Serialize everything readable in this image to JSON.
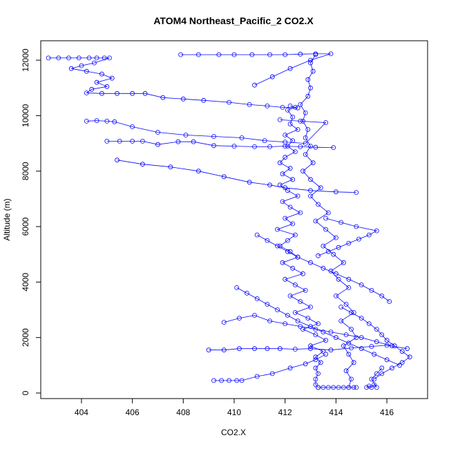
{
  "chart_data": {
    "type": "scatter",
    "title": "ATOM4 Northeast_Pacific_2 CO2.X",
    "xlabel": "CO2.X",
    "ylabel": "Altitude (m)",
    "xlim": [
      402.4,
      417.6
    ],
    "ylim": [
      -200,
      12700
    ],
    "x_ticks": [
      404,
      406,
      408,
      410,
      412,
      414,
      416
    ],
    "y_ticks": [
      0,
      2000,
      4000,
      6000,
      8000,
      10000,
      12000
    ],
    "marker_color": "#0000ff",
    "line_color": "#0000ff",
    "grid": false,
    "legend": "none",
    "series": [
      {
        "values": [
          [
            412.2,
            10350
          ],
          [
            412.4,
            10300
          ],
          [
            412.1,
            10200
          ],
          [
            412.3,
            9950
          ],
          [
            412.2,
            9700
          ],
          [
            412.5,
            9500
          ],
          [
            412.0,
            9300
          ],
          [
            412.3,
            9100
          ],
          [
            412.1,
            8900
          ],
          [
            412.4,
            8700
          ],
          [
            412.0,
            8500
          ],
          [
            411.8,
            8300
          ],
          [
            412.2,
            8100
          ],
          [
            411.9,
            7900
          ],
          [
            412.3,
            7700
          ],
          [
            411.8,
            7500
          ],
          [
            412.1,
            7300
          ],
          [
            412.5,
            7100
          ],
          [
            411.9,
            6900
          ],
          [
            412.2,
            6700
          ],
          [
            412.6,
            6500
          ],
          [
            412.0,
            6300
          ],
          [
            412.3,
            6100
          ],
          [
            411.7,
            5900
          ],
          [
            412.4,
            5700
          ],
          [
            412.1,
            5500
          ],
          [
            411.8,
            5300
          ],
          [
            412.2,
            5100
          ],
          [
            412.5,
            4900
          ],
          [
            411.9,
            4700
          ],
          [
            412.3,
            4500
          ],
          [
            412.7,
            4300
          ],
          [
            412.0,
            4100
          ],
          [
            412.4,
            3900
          ],
          [
            412.8,
            3700
          ],
          [
            412.2,
            3500
          ],
          [
            412.6,
            3300
          ],
          [
            413.0,
            3100
          ],
          [
            412.4,
            2900
          ],
          [
            412.9,
            2700
          ],
          [
            413.3,
            2500
          ],
          [
            412.7,
            2300
          ],
          [
            413.2,
            2100
          ],
          [
            413.6,
            1900
          ],
          [
            413.0,
            1700
          ],
          [
            413.5,
            1500
          ],
          [
            413.2,
            1300
          ],
          [
            413.4,
            1100
          ],
          [
            413.2,
            900
          ],
          [
            413.3,
            700
          ],
          [
            413.2,
            500
          ],
          [
            413.2,
            300
          ],
          [
            413.3,
            200
          ]
        ]
      },
      {
        "values": [
          [
            414.5,
            200
          ],
          [
            414.6,
            500
          ],
          [
            414.4,
            800
          ],
          [
            414.7,
            1100
          ],
          [
            414.5,
            1400
          ],
          [
            414.3,
            1700
          ],
          [
            414.8,
            2000
          ],
          [
            414.6,
            2300
          ],
          [
            414.2,
            2600
          ],
          [
            414.7,
            2900
          ],
          [
            414.4,
            3200
          ],
          [
            414.0,
            3500
          ],
          [
            414.5,
            3800
          ],
          [
            414.1,
            4100
          ],
          [
            413.8,
            4400
          ],
          [
            414.3,
            4700
          ],
          [
            413.9,
            5000
          ],
          [
            413.5,
            5300
          ],
          [
            414.0,
            5600
          ],
          [
            413.6,
            5900
          ],
          [
            413.2,
            6200
          ],
          [
            413.7,
            6500
          ],
          [
            413.3,
            6800
          ],
          [
            413.0,
            7100
          ],
          [
            413.4,
            7400
          ],
          [
            413.0,
            7700
          ],
          [
            412.7,
            8000
          ],
          [
            413.1,
            8300
          ],
          [
            412.8,
            8600
          ],
          [
            413.0,
            8900
          ],
          [
            412.8,
            9200
          ],
          [
            412.9,
            9500
          ],
          [
            412.7,
            9800
          ],
          [
            412.8,
            10100
          ],
          [
            412.6,
            10400
          ],
          [
            412.9,
            10700
          ],
          [
            413.0,
            11000
          ],
          [
            412.9,
            11300
          ],
          [
            413.1,
            11600
          ],
          [
            413.0,
            11900
          ],
          [
            413.2,
            12200
          ]
        ]
      },
      {
        "values": [
          [
            402.7,
            12080
          ],
          [
            403.1,
            12080
          ],
          [
            403.5,
            12080
          ],
          [
            403.9,
            12080
          ],
          [
            404.3,
            12080
          ],
          [
            404.6,
            12080
          ],
          [
            404.9,
            12080
          ],
          [
            405.1,
            12080
          ],
          [
            404.5,
            11900
          ],
          [
            404.0,
            11800
          ],
          [
            403.6,
            11700
          ],
          [
            404.2,
            11600
          ],
          [
            404.8,
            11500
          ],
          [
            405.2,
            11350
          ],
          [
            404.6,
            11200
          ],
          [
            405.0,
            11050
          ],
          [
            404.4,
            10950
          ],
          [
            404.2,
            10820
          ],
          [
            404.8,
            10800
          ],
          [
            405.4,
            10800
          ],
          [
            406.0,
            10800
          ],
          [
            406.5,
            10800
          ],
          [
            407.2,
            10650
          ],
          [
            408.0,
            10600
          ],
          [
            408.8,
            10550
          ],
          [
            409.8,
            10480
          ],
          [
            410.6,
            10400
          ],
          [
            411.3,
            10350
          ],
          [
            411.9,
            10300
          ],
          [
            412.5,
            10280
          ]
        ]
      },
      {
        "values": [
          [
            404.2,
            9800
          ],
          [
            404.6,
            9820
          ],
          [
            405.0,
            9800
          ],
          [
            405.3,
            9780
          ],
          [
            406.0,
            9600
          ],
          [
            407.0,
            9400
          ],
          [
            408.1,
            9300
          ],
          [
            409.2,
            9250
          ],
          [
            410.3,
            9200
          ],
          [
            411.2,
            9100
          ],
          [
            412.0,
            9050
          ],
          [
            412.8,
            9000
          ],
          [
            413.6,
            9750
          ],
          [
            412.6,
            9800
          ],
          [
            411.8,
            9850
          ]
        ]
      },
      {
        "values": [
          [
            405.0,
            9080
          ],
          [
            405.5,
            9080
          ],
          [
            406.0,
            9080
          ],
          [
            406.4,
            9080
          ],
          [
            407.0,
            8960
          ],
          [
            407.8,
            9060
          ],
          [
            408.4,
            9060
          ],
          [
            409.2,
            8920
          ],
          [
            410.0,
            8900
          ],
          [
            410.8,
            8880
          ],
          [
            411.4,
            8880
          ],
          [
            412.0,
            8900
          ],
          [
            412.6,
            8880
          ],
          [
            413.2,
            8860
          ],
          [
            413.9,
            8850
          ]
        ]
      },
      {
        "values": [
          [
            405.4,
            8400
          ],
          [
            406.4,
            8250
          ],
          [
            407.5,
            8150
          ],
          [
            408.6,
            8000
          ],
          [
            409.6,
            7800
          ],
          [
            410.6,
            7600
          ],
          [
            411.4,
            7500
          ],
          [
            412.0,
            7400
          ],
          [
            413.0,
            7300
          ],
          [
            414.0,
            7250
          ],
          [
            414.8,
            7230
          ]
        ]
      },
      {
        "values": [
          [
            407.9,
            12200
          ],
          [
            408.6,
            12200
          ],
          [
            409.4,
            12200
          ],
          [
            410.0,
            12200
          ],
          [
            410.7,
            12200
          ],
          [
            411.4,
            12200
          ],
          [
            412.0,
            12200
          ],
          [
            412.6,
            12220
          ],
          [
            413.2,
            12230
          ],
          [
            413.8,
            12230
          ],
          [
            413.0,
            12000
          ],
          [
            412.2,
            11700
          ],
          [
            411.5,
            11400
          ],
          [
            410.8,
            11100
          ]
        ]
      },
      {
        "values": [
          [
            409.2,
            450
          ],
          [
            409.5,
            450
          ],
          [
            409.8,
            450
          ],
          [
            410.1,
            450
          ],
          [
            410.3,
            450
          ],
          [
            410.9,
            600
          ],
          [
            411.5,
            700
          ],
          [
            412.2,
            900
          ],
          [
            412.8,
            1050
          ],
          [
            413.2,
            1200
          ],
          [
            413.6,
            1400
          ]
        ]
      },
      {
        "values": [
          [
            409.0,
            1550
          ],
          [
            409.6,
            1550
          ],
          [
            410.2,
            1600
          ],
          [
            410.8,
            1600
          ],
          [
            411.3,
            1600
          ],
          [
            411.8,
            1600
          ],
          [
            412.4,
            1580
          ],
          [
            413.0,
            1600
          ],
          [
            413.8,
            1550
          ],
          [
            414.6,
            1620
          ],
          [
            415.4,
            1680
          ],
          [
            416.0,
            1720
          ],
          [
            416.8,
            1600
          ]
        ]
      },
      {
        "values": [
          [
            409.6,
            2550
          ],
          [
            410.2,
            2700
          ],
          [
            410.8,
            2800
          ],
          [
            411.4,
            2600
          ],
          [
            412.0,
            2500
          ],
          [
            412.6,
            2400
          ],
          [
            413.2,
            2300
          ],
          [
            413.8,
            2200
          ],
          [
            414.4,
            2100
          ],
          [
            415.0,
            2000
          ],
          [
            415.6,
            1850
          ],
          [
            416.2,
            1700
          ]
        ]
      },
      {
        "values": [
          [
            410.1,
            3800
          ],
          [
            410.5,
            3600
          ],
          [
            410.9,
            3400
          ],
          [
            411.3,
            3200
          ],
          [
            411.7,
            3000
          ],
          [
            412.1,
            2800
          ],
          [
            412.5,
            2600
          ],
          [
            413.0,
            2400
          ],
          [
            413.5,
            2200
          ],
          [
            414.0,
            2000
          ],
          [
            414.5,
            1800
          ],
          [
            415.0,
            1600
          ],
          [
            415.5,
            1400
          ],
          [
            416.0,
            1200
          ],
          [
            416.5,
            1000
          ]
        ]
      },
      {
        "values": [
          [
            410.9,
            5700
          ],
          [
            411.3,
            5500
          ],
          [
            411.7,
            5300
          ],
          [
            412.1,
            5100
          ],
          [
            412.5,
            4900
          ],
          [
            413.0,
            4700
          ],
          [
            413.5,
            4500
          ],
          [
            414.0,
            4300
          ],
          [
            414.5,
            4100
          ],
          [
            415.0,
            3900
          ],
          [
            415.4,
            3700
          ],
          [
            415.8,
            3500
          ],
          [
            416.1,
            3300
          ]
        ]
      },
      {
        "values": [
          [
            413.3,
            4950
          ],
          [
            413.7,
            5100
          ],
          [
            414.1,
            5250
          ],
          [
            414.5,
            5400
          ],
          [
            414.9,
            5550
          ],
          [
            415.3,
            5700
          ],
          [
            415.6,
            5850
          ],
          [
            414.8,
            6000
          ],
          [
            414.2,
            6150
          ],
          [
            413.6,
            6300
          ]
        ]
      },
      {
        "values": [
          [
            414.2,
            3100
          ],
          [
            414.6,
            2900
          ],
          [
            415.0,
            2700
          ],
          [
            415.3,
            2500
          ],
          [
            415.6,
            2300
          ],
          [
            415.8,
            2100
          ],
          [
            416.0,
            1900
          ],
          [
            416.3,
            1700
          ],
          [
            416.6,
            1500
          ],
          [
            416.9,
            1300
          ],
          [
            416.6,
            1100
          ],
          [
            416.2,
            900
          ],
          [
            415.8,
            700
          ],
          [
            415.5,
            500
          ]
        ]
      },
      {
        "values": [
          [
            415.2,
            200
          ],
          [
            415.3,
            250
          ],
          [
            415.4,
            200
          ],
          [
            415.5,
            300
          ],
          [
            415.6,
            200
          ],
          [
            415.4,
            500
          ],
          [
            415.6,
            700
          ],
          [
            415.8,
            900
          ]
        ]
      },
      {
        "values": [
          [
            413.3,
            200
          ],
          [
            413.5,
            200
          ],
          [
            413.7,
            200
          ],
          [
            413.9,
            200
          ],
          [
            414.1,
            200
          ],
          [
            414.3,
            200
          ],
          [
            414.5,
            200
          ],
          [
            414.7,
            200
          ],
          [
            414.8,
            200
          ]
        ]
      }
    ]
  }
}
